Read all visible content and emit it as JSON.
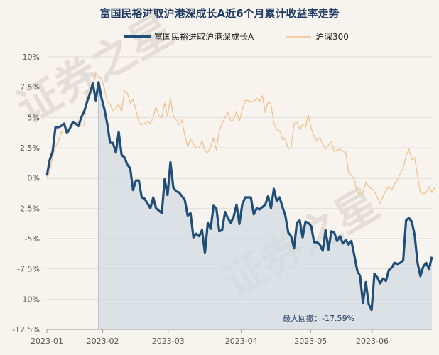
{
  "chart_data": {
    "type": "line",
    "title": "富国民裕进取沪港深成长A近6个月累计收益率走势",
    "xlabel": "",
    "ylabel": "",
    "ylim": [
      -12.5,
      10
    ],
    "y_ticks": [
      "10%",
      "7.5%",
      "5%",
      "2.5%",
      "0%",
      "-2.5%",
      "-5%",
      "-7.5%",
      "-10%",
      "-12.5%"
    ],
    "x_ticks": [
      "2023-01",
      "2023-02",
      "2023-03",
      "2023-04",
      "2023-05",
      "2023-06"
    ],
    "legend_position": "top-center",
    "grid": true,
    "annotation": "最大回撤：-17.59%",
    "watermark": "证券之星",
    "series": [
      {
        "name": "富国民裕进取沪港深成长A",
        "color": "#1f4e79",
        "values": [
          0.2,
          1.5,
          2.2,
          4.2,
          4.2,
          4.3,
          4.5,
          3.7,
          4.1,
          4.6,
          4.5,
          4.3,
          5.0,
          5.5,
          6.3,
          7.0,
          7.8,
          6.4,
          7.9,
          6.6,
          5.7,
          4.5,
          2.9,
          2.9,
          2.1,
          3.8,
          1.9,
          1.7,
          1.1,
          0.8,
          -1.0,
          -0.2,
          -0.2,
          -1.6,
          -1.7,
          -2.1,
          -2.5,
          -1.6,
          -2.5,
          -2.7,
          -2.9,
          -0.1,
          -1.4,
          1.3,
          -0.8,
          -1.1,
          -1.2,
          -1.5,
          -1.8,
          -3.1,
          -2.9,
          -4.9,
          -4.6,
          -4.8,
          -4.3,
          -6.2,
          -3.7,
          -4.2,
          -2.3,
          -2.5,
          -4.4,
          -4.3,
          -2.8,
          -3.3,
          -3.7,
          -3.2,
          -2.2,
          -3.8,
          -2.2,
          -1.6,
          -1.6,
          -1.6,
          -3.0,
          -2.5,
          -2.6,
          -2.4,
          -2.2,
          -1.5,
          -2.5,
          -0.9,
          -1.9,
          -1.6,
          -2.4,
          -3.1,
          -4.5,
          -4.8,
          -5.8,
          -3.7,
          -3.5,
          -4.9,
          -3.6,
          -3.7,
          -4.0,
          -5.3,
          -5.3,
          -5.5,
          -6.0,
          -4.3,
          -5.9,
          -4.4,
          -4.5,
          -5.2,
          -4.8,
          -5.4,
          -5.1,
          -5.5,
          -5.2,
          -6.4,
          -7.6,
          -8.1,
          -10.3,
          -8.6,
          -10.4,
          -10.9,
          -7.9,
          -8.2,
          -8.7,
          -8.3,
          -8.5,
          -7.6,
          -7.4,
          -7.0,
          -7.1,
          -7.0,
          -6.8,
          -3.5,
          -3.3,
          -3.6,
          -4.7,
          -7.0,
          -8.1,
          -7.3,
          -7.0,
          -7.5,
          -6.5
        ]
      },
      {
        "name": "沪深300",
        "color": "#f0c08a",
        "values": [
          0.0,
          0.5,
          1.8,
          2.6,
          3.0,
          3.8,
          3.7,
          3.8,
          4.2,
          4.3,
          4.5,
          4.6,
          4.3,
          4.3,
          7.2,
          7.1,
          7.4,
          8.6,
          8.3,
          8.2,
          7.4,
          6.3,
          6.1,
          5.5,
          5.8,
          6.1,
          5.5,
          7.2,
          7.0,
          6.2,
          6.5,
          5.6,
          4.6,
          4.4,
          4.5,
          4.7,
          4.5,
          5.0,
          5.9,
          5.1,
          5.0,
          6.2,
          5.1,
          6.6,
          5.1,
          4.8,
          4.4,
          4.8,
          3.5,
          2.6,
          3.2,
          2.8,
          2.5,
          2.5,
          3.1,
          2.2,
          2.1,
          2.6,
          3.3,
          2.3,
          3.9,
          4.5,
          5.0,
          5.4,
          4.7,
          4.8,
          5.5,
          4.7,
          5.6,
          6.4,
          6.4,
          6.3,
          6.3,
          6.6,
          6.3,
          6.8,
          5.4,
          6.3,
          6.1,
          4.5,
          4.0,
          3.9,
          3.2,
          3.2,
          2.4,
          2.5,
          4.5,
          4.6,
          4.0,
          4.4,
          4.2,
          5.2,
          4.1,
          3.4,
          3.1,
          3.3,
          2.8,
          2.4,
          2.7,
          3.0,
          2.2,
          2.3,
          2.4,
          2.2,
          2.1,
          0.5,
          0.2,
          -0.1,
          -1.2,
          -1.4,
          -1.2,
          -0.4,
          -0.7,
          -0.9,
          -1.1,
          -1.6,
          -2.1,
          -1.5,
          -1.0,
          -0.7,
          -1.0,
          -0.5,
          -0.2,
          0.4,
          0.8,
          1.8,
          2.4,
          1.5,
          1.7,
          0.2,
          -1.2,
          -1.3,
          -1.2,
          -0.7,
          -1.2,
          -0.8
        ]
      }
    ]
  }
}
